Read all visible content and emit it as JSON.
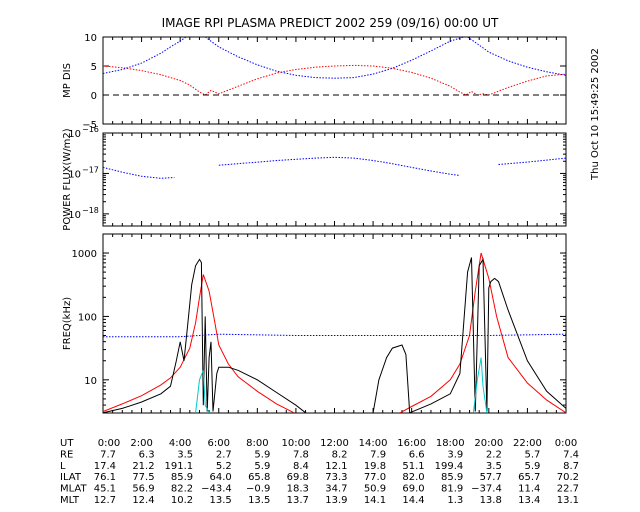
{
  "title": "IMAGE  RPI PLASMA PREDICT 2002 259 (09/16) 00:00 UT",
  "side_stamp": "Thu Oct 10 15:49:25 2002",
  "colors": {
    "red": "#ff0000",
    "blue": "#0000ff",
    "black": "#000000",
    "cyan": "#00cccc"
  },
  "chart_data": [
    {
      "type": "line",
      "ylabel": "MP DIS",
      "ylim": [
        -5,
        10
      ],
      "yticks": [
        "10",
        "5",
        "0",
        "−5"
      ],
      "yticks_values": [
        10,
        5,
        0,
        -5
      ],
      "xlim": [
        0,
        24
      ],
      "series": [
        {
          "color": "red",
          "style": "dotted",
          "x": [
            0,
            1,
            2,
            3,
            4,
            4.5,
            5,
            5.3,
            5.6,
            6,
            7,
            8,
            9,
            10,
            11,
            12,
            13,
            14,
            15,
            16,
            17,
            18,
            18.5,
            18.8,
            19.1,
            19.4,
            19.7,
            20,
            21,
            22,
            23,
            24
          ],
          "y": [
            5,
            4.7,
            4.2,
            3.5,
            2.5,
            1.7,
            0.5,
            0,
            0.8,
            0.2,
            1.5,
            2.8,
            3.8,
            4.4,
            4.8,
            5.0,
            5.1,
            5.0,
            4.6,
            3.9,
            2.9,
            1.5,
            0.5,
            0,
            0.6,
            0,
            0.2,
            0,
            1.3,
            2.4,
            3.3,
            3.6
          ]
        },
        {
          "color": "blue",
          "style": "dotted",
          "x": [
            0,
            1,
            2,
            3,
            3.5,
            4,
            4.3
          ],
          "y": [
            3.7,
            4.4,
            5.5,
            7.2,
            8.3,
            9.3,
            10
          ]
        },
        {
          "color": "blue",
          "style": "dotted",
          "x": [
            5.3,
            6,
            7,
            8,
            9,
            10,
            11,
            12,
            13,
            14,
            15,
            16,
            17,
            18,
            18.7
          ],
          "y": [
            10,
            8.3,
            6.6,
            5.2,
            4.1,
            3.4,
            3.0,
            2.9,
            3.0,
            3.6,
            4.6,
            6.0,
            7.6,
            9.3,
            10
          ]
        },
        {
          "color": "blue",
          "style": "dotted",
          "x": [
            18.9,
            19.5,
            20,
            21,
            22,
            23,
            24
          ],
          "y": [
            10,
            8.6,
            7.4,
            5.9,
            4.8,
            4.0,
            3.4
          ]
        },
        {
          "color": "black",
          "style": "dashed",
          "x": [
            0,
            24
          ],
          "y": [
            0,
            0
          ]
        }
      ]
    },
    {
      "type": "line",
      "ylabel": "POWER FLUX(W/m2)",
      "ylim": [
        -18.3,
        -16
      ],
      "scale": "log",
      "yticks": [
        {
          "base": "10",
          "exp": "−16",
          "value": -16
        },
        {
          "base": "10",
          "exp": "−17",
          "value": -17
        },
        {
          "base": "10",
          "exp": "−18",
          "value": -18
        }
      ],
      "xlim": [
        0,
        24
      ],
      "series": [
        {
          "color": "blue",
          "style": "dotted",
          "x": [
            0,
            1,
            2,
            3,
            3.7
          ],
          "y": [
            -16.85,
            -16.97,
            -17.07,
            -17.12,
            -17.1
          ]
        },
        {
          "color": "blue",
          "style": "dotted",
          "x": [
            6,
            7,
            8,
            9,
            10,
            11,
            12,
            13,
            14,
            15,
            16,
            17,
            18,
            18.5
          ],
          "y": [
            -16.8,
            -16.76,
            -16.72,
            -16.68,
            -16.65,
            -16.62,
            -16.6,
            -16.62,
            -16.68,
            -16.76,
            -16.85,
            -16.94,
            -17.02,
            -17.05
          ]
        },
        {
          "color": "blue",
          "style": "dotted",
          "x": [
            20.5,
            21,
            22,
            23,
            24
          ],
          "y": [
            -16.78,
            -16.76,
            -16.72,
            -16.67,
            -16.62
          ]
        }
      ]
    },
    {
      "type": "line",
      "ylabel": "FREQ(kHz)",
      "ylim": [
        0.477,
        3.3
      ],
      "scale": "log",
      "yticks": [
        "1000",
        "100",
        "10"
      ],
      "yticks_values": [
        3,
        2,
        1
      ],
      "xlim": [
        0,
        24
      ],
      "series": [
        {
          "color": "red",
          "style": "solid",
          "x": [
            0,
            1,
            2,
            3,
            3.5,
            4,
            4.5,
            4.8,
            5,
            5.2,
            5.5,
            5.8,
            6,
            6.5,
            7,
            8,
            9,
            9.9
          ],
          "y": [
            0.5,
            0.62,
            0.75,
            0.92,
            1.03,
            1.2,
            1.5,
            1.9,
            2.3,
            2.66,
            2.4,
            1.9,
            1.55,
            1.25,
            1.05,
            0.82,
            0.62,
            0.48
          ]
        },
        {
          "color": "red",
          "style": "solid",
          "x": [
            15.4,
            16,
            17,
            18,
            18.5,
            19,
            19.3,
            19.6,
            20,
            20.4,
            21,
            22,
            23,
            24
          ],
          "y": [
            0.48,
            0.58,
            0.74,
            1.0,
            1.25,
            1.7,
            2.4,
            3.0,
            2.6,
            2.0,
            1.35,
            0.95,
            0.68,
            0.48
          ]
        },
        {
          "color": "black",
          "style": "solid",
          "x": [
            0,
            1,
            2,
            3,
            3.5,
            3.8,
            4,
            4.2,
            4.4,
            4.6,
            4.8,
            5,
            5.1,
            5.2,
            5.3,
            5.4,
            5.5,
            5.6,
            5.7,
            5.8,
            5.9,
            6,
            6.5,
            7,
            8,
            9,
            10,
            10.5
          ],
          "y": [
            0.48,
            0.55,
            0.65,
            0.78,
            0.9,
            1.3,
            1.6,
            1.3,
            1.9,
            2.5,
            2.8,
            2.9,
            2.85,
            0.6,
            2.0,
            0.5,
            1.35,
            1.6,
            0.5,
            0.8,
            1.1,
            1.2,
            1.2,
            1.15,
            1.0,
            0.8,
            0.6,
            0.48
          ]
        },
        {
          "color": "black",
          "style": "solid",
          "x": [
            14,
            14.3,
            14.7,
            15,
            15.5,
            15.7,
            15.9
          ],
          "y": [
            0.48,
            1.0,
            1.35,
            1.5,
            1.55,
            1.4,
            0.48
          ]
        },
        {
          "color": "black",
          "style": "solid",
          "x": [
            15.9,
            17,
            18,
            18.5,
            18.9,
            19.1,
            19.3,
            19.5,
            19.7,
            19.9,
            20,
            20.1,
            20.3,
            20.5,
            21,
            22,
            23,
            24
          ],
          "y": [
            0.48,
            0.62,
            0.78,
            1.1,
            2.7,
            2.93,
            0.5,
            2.8,
            2.9,
            0.5,
            2.45,
            2.55,
            2.6,
            2.55,
            2.1,
            1.3,
            0.82,
            0.55
          ]
        },
        {
          "color": "cyan",
          "style": "solid",
          "x": [
            4.8,
            5,
            5.2,
            5.3,
            5.5
          ],
          "y": [
            0.48,
            1.0,
            1.15,
            0.6,
            0.48
          ]
        },
        {
          "color": "cyan",
          "style": "solid",
          "x": [
            19.2,
            19.4,
            19.6,
            19.7,
            19.9
          ],
          "y": [
            0.48,
            1.0,
            1.35,
            0.9,
            0.48
          ]
        },
        {
          "color": "blue",
          "style": "dotted",
          "x": [
            0,
            3,
            4,
            6,
            10,
            14,
            18,
            20,
            24
          ],
          "y": [
            1.68,
            1.68,
            1.68,
            1.72,
            1.7,
            1.7,
            1.7,
            1.7,
            1.72
          ]
        }
      ]
    }
  ],
  "x_axis": {
    "ticks": [
      "0:00",
      "2:00",
      "4:00",
      "6:00",
      "8:00",
      "10:00",
      "12:00",
      "14:00",
      "16:00",
      "18:00",
      "20:00",
      "22:00",
      "0:00"
    ]
  },
  "table": {
    "rows": [
      {
        "label": "UT",
        "values": [
          "0:00",
          "2:00",
          "4:00",
          "6:00",
          "8:00",
          "10:00",
          "12:00",
          "14:00",
          "16:00",
          "18:00",
          "20:00",
          "22:00",
          "0:00"
        ]
      },
      {
        "label": "RE",
        "values": [
          "7.7",
          "6.3",
          "3.5",
          "2.7",
          "5.9",
          "7.8",
          "8.2",
          "7.9",
          "6.6",
          "3.9",
          "2.2",
          "5.7",
          "7.4"
        ]
      },
      {
        "label": "L",
        "values": [
          "17.4",
          "21.2",
          "191.1",
          "5.2",
          "5.9",
          "8.4",
          "12.1",
          "19.8",
          "51.1",
          "199.4",
          "3.5",
          "5.9",
          "8.7"
        ]
      },
      {
        "label": "ILAT",
        "values": [
          "76.1",
          "77.5",
          "85.9",
          "64.0",
          "65.8",
          "69.8",
          "73.3",
          "77.0",
          "82.0",
          "85.9",
          "57.7",
          "65.7",
          "70.2"
        ]
      },
      {
        "label": "MLAT",
        "values": [
          "45.1",
          "56.9",
          "82.2",
          "−43.4",
          "−0.9",
          "18.3",
          "34.7",
          "50.9",
          "69.0",
          "81.9",
          "−37.4",
          "11.4",
          "22.7"
        ]
      },
      {
        "label": "MLT",
        "values": [
          "12.7",
          "12.4",
          "10.2",
          "13.5",
          "13.5",
          "13.7",
          "13.9",
          "14.1",
          "14.4",
          "1.3",
          "13.8",
          "13.4",
          "13.1"
        ]
      }
    ]
  }
}
